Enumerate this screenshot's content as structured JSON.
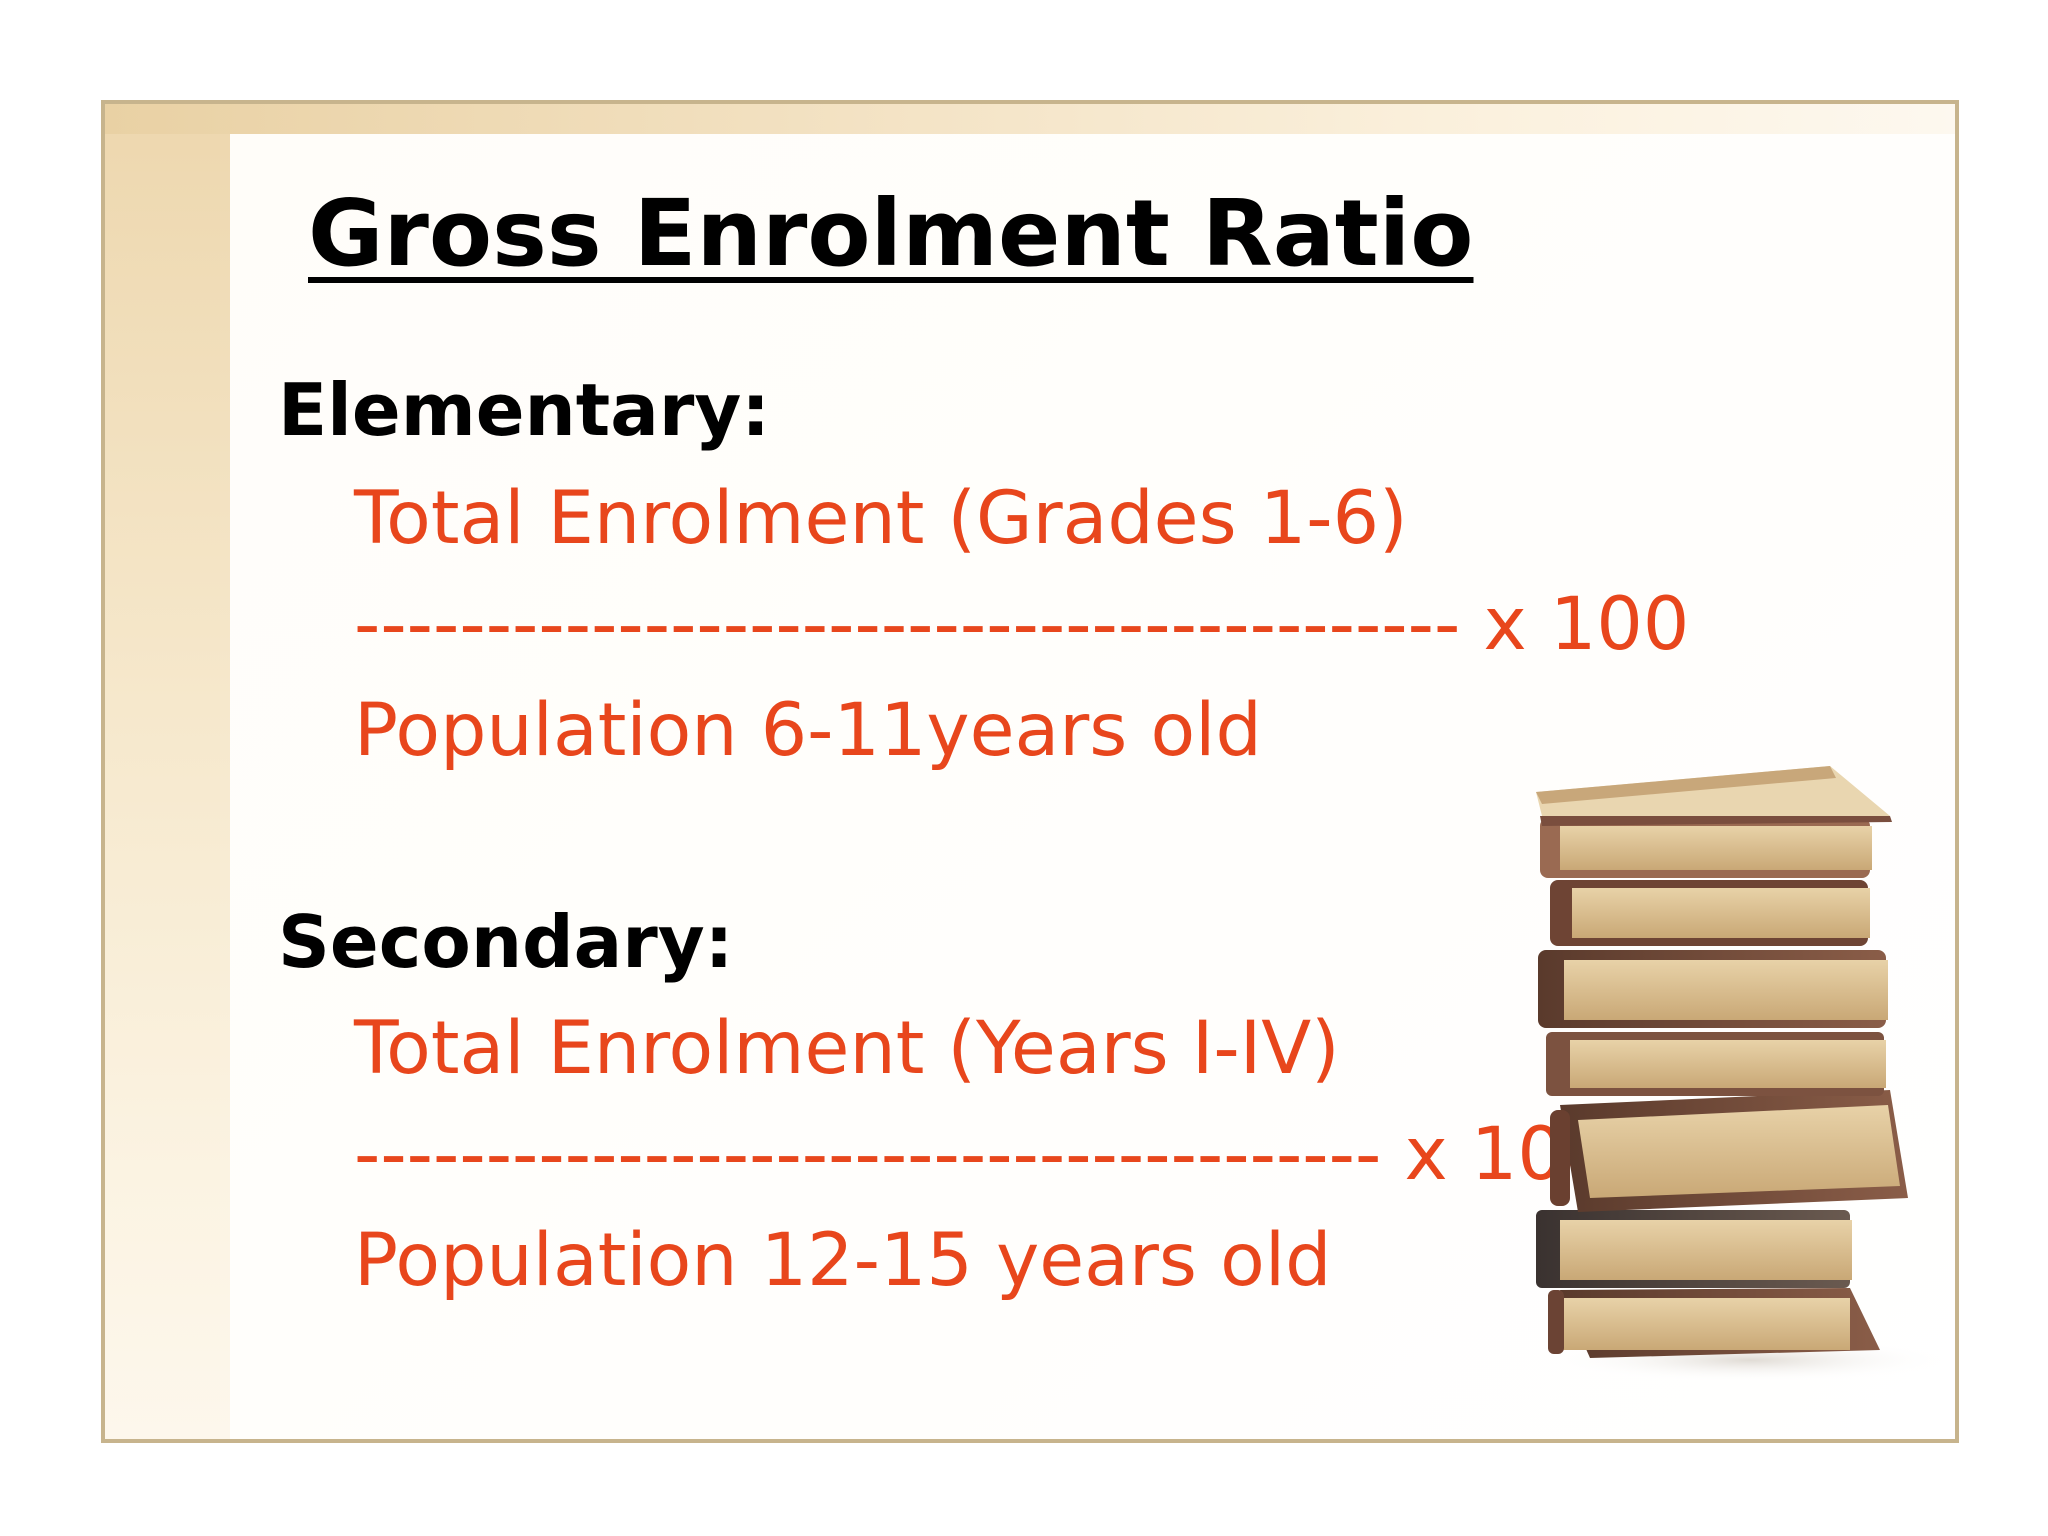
{
  "slide": {
    "title": "Gross Enrolment Ratio",
    "elementary": {
      "heading": "Elementary:",
      "numerator": "Total Enrolment (Grades 1-6)",
      "divider": "------------------------------------------ x 100",
      "denominator": "Population 6-11years old"
    },
    "secondary": {
      "heading": "Secondary:",
      "numerator": "Total Enrolment (Years I-IV)",
      "divider": "--------------------------------------- x 100",
      "denominator": "Population 12-15 years old"
    }
  },
  "colors": {
    "formula_text": "#e8461c",
    "heading_text": "#000000",
    "frame_border": "#c7b48d"
  },
  "illustration": {
    "icon": "stack-of-books-icon"
  }
}
